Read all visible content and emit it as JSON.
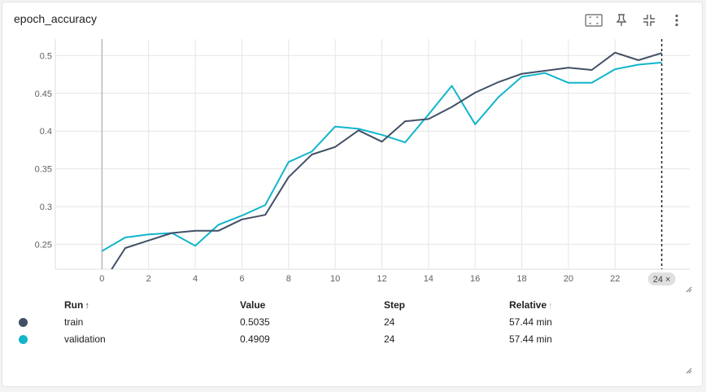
{
  "card": {
    "title": "epoch_accuracy",
    "tools": [
      "fit-domain-icon",
      "pin-icon",
      "collapse-icon",
      "more-vert-icon"
    ]
  },
  "chart_data": {
    "type": "line",
    "xlim": [
      -2,
      25.2
    ],
    "ylim": [
      0.217,
      0.522
    ],
    "xticks": [
      "0",
      "2",
      "4",
      "6",
      "8",
      "10",
      "12",
      "14",
      "16",
      "18",
      "20",
      "22"
    ],
    "yticks": [
      "0.25",
      "0.3",
      "0.35",
      "0.4",
      "0.45",
      "0.5"
    ],
    "grid": true,
    "cursor_step": 24,
    "cursor_label": "24 ×",
    "series": [
      {
        "name": "train",
        "color": "#425066",
        "x": [
          0,
          1,
          2,
          3,
          4,
          5,
          6,
          7,
          8,
          9,
          10,
          11,
          12,
          13,
          14,
          15,
          16,
          17,
          18,
          19,
          20,
          21,
          22,
          23,
          24
        ],
        "values": [
          0.197,
          0.245,
          0.255,
          0.265,
          0.268,
          0.268,
          0.283,
          0.289,
          0.339,
          0.369,
          0.379,
          0.401,
          0.386,
          0.413,
          0.416,
          0.432,
          0.451,
          0.465,
          0.476,
          0.48,
          0.484,
          0.481,
          0.504,
          0.494,
          0.5035
        ]
      },
      {
        "name": "validation",
        "color": "#12b5cb",
        "x": [
          0,
          1,
          2,
          3,
          4,
          5,
          6,
          7,
          8,
          9,
          10,
          11,
          12,
          13,
          14,
          15,
          16,
          17,
          18,
          19,
          20,
          21,
          22,
          23,
          24
        ],
        "values": [
          0.241,
          0.259,
          0.263,
          0.265,
          0.248,
          0.276,
          0.288,
          0.302,
          0.359,
          0.373,
          0.406,
          0.403,
          0.395,
          0.385,
          0.422,
          0.46,
          0.409,
          0.445,
          0.472,
          0.477,
          0.464,
          0.464,
          0.482,
          0.488,
          0.4909
        ]
      }
    ]
  },
  "table": {
    "headers": {
      "run": "Run",
      "value": "Value",
      "step": "Step",
      "relative": "Relative",
      "sort_arrow": "↑"
    },
    "rows": [
      {
        "run": "train",
        "value": "0.5035",
        "step": "24",
        "relative": "57.44 min",
        "color": "#425066"
      },
      {
        "run": "validation",
        "value": "0.4909",
        "step": "24",
        "relative": "57.44 min",
        "color": "#12b5cb"
      }
    ]
  }
}
